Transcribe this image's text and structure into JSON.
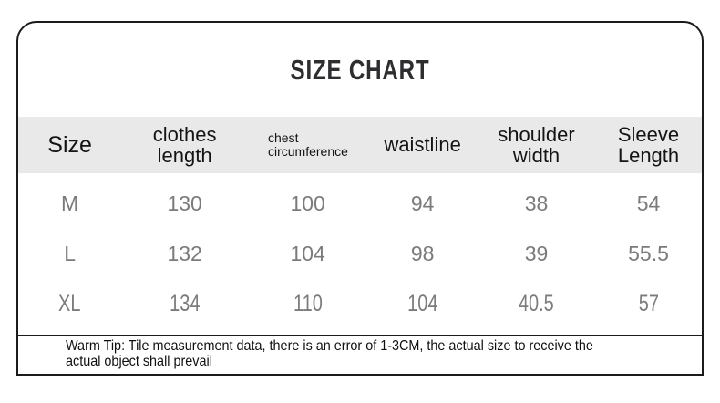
{
  "title": "SIZE CHART",
  "table": {
    "headers": [
      "Size",
      "clothes\nlength",
      "chest\ncircumference",
      "waistline",
      "shoulder\nwidth",
      "Sleeve\nLength"
    ],
    "rows": [
      [
        "M",
        "130",
        "100",
        "94",
        "38",
        "54"
      ],
      [
        "L",
        "132",
        "104",
        "98",
        "39",
        "55.5"
      ],
      [
        "XL",
        "134",
        "110",
        "104",
        "40.5",
        "57"
      ]
    ]
  },
  "tip": "Warm Tip: Tile measurement data, there is an error of 1-3CM, the actual size to receive the\nactual object shall prevail",
  "colors": {
    "header_band_bg": "#e9e9e9",
    "border": "#1b1b1b",
    "title_text": "#2e2e30",
    "header_text": "#141414",
    "value_text": "#7b7b7b"
  },
  "chart_data": {
    "type": "table",
    "title": "SIZE CHART",
    "columns": [
      "Size",
      "clothes length",
      "chest circumference",
      "waistline",
      "shoulder width",
      "Sleeve Length"
    ],
    "rows": [
      [
        "M",
        130,
        100,
        94,
        38,
        54
      ],
      [
        "L",
        132,
        104,
        98,
        39,
        55.5
      ],
      [
        "XL",
        134,
        110,
        104,
        40.5,
        57
      ]
    ],
    "note": "Warm Tip: Tile measurement data, there is an error of 1-3CM, the actual size to receive the actual object shall prevail"
  }
}
